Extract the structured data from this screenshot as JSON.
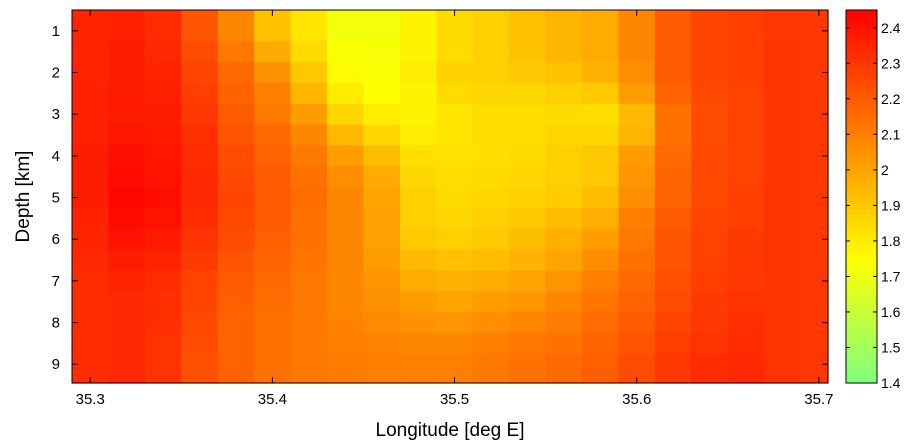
{
  "chart_data": {
    "type": "heatmap",
    "xlabel": "Longitude [deg E]",
    "ylabel": "Depth [km]",
    "xlim": [
      35.29,
      35.705
    ],
    "ylim": [
      9.45,
      0.5
    ],
    "y_direction": "down",
    "xticks": [
      35.3,
      35.4,
      35.5,
      35.6,
      35.7
    ],
    "xtick_labels": [
      "35.3",
      "35.4",
      "35.5",
      "35.6",
      "35.7"
    ],
    "yticks": [
      1,
      2,
      3,
      4,
      5,
      6,
      7,
      8,
      9
    ],
    "ytick_labels": [
      "1",
      "2",
      "3",
      "4",
      "5",
      "6",
      "7",
      "8",
      "9"
    ],
    "colorbar": {
      "range": [
        1.4,
        2.45
      ],
      "colormap": "jet",
      "ticks": [
        1.4,
        1.5,
        1.6,
        1.7,
        1.8,
        1.9,
        2.0,
        2.1,
        2.2,
        2.3,
        2.4
      ],
      "tick_labels": [
        "1.4",
        "1.5",
        "1.6",
        "1.7",
        "1.8",
        "1.9",
        "2",
        "2.1",
        "2.2",
        "2.3",
        "2.4"
      ]
    },
    "grid": false,
    "legend": "none",
    "x": [
      35.3,
      35.32,
      35.34,
      35.36,
      35.38,
      35.4,
      35.42,
      35.44,
      35.46,
      35.48,
      35.5,
      35.52,
      35.54,
      35.56,
      35.58,
      35.6,
      35.62,
      35.64,
      35.66,
      35.68,
      35.7
    ],
    "y": [
      0.5,
      1,
      1.5,
      2,
      2.5,
      3,
      3.5,
      4,
      4.5,
      5,
      5.5,
      6,
      6.5,
      7,
      7.5,
      8,
      8.5,
      9,
      9.5
    ],
    "z": [
      [
        2.35,
        2.36,
        2.33,
        2.22,
        2.08,
        1.92,
        1.82,
        1.72,
        1.72,
        1.78,
        1.85,
        1.88,
        1.92,
        1.95,
        1.98,
        2.08,
        2.2,
        2.26,
        2.28,
        2.3,
        2.3
      ],
      [
        2.35,
        2.36,
        2.33,
        2.22,
        2.08,
        1.92,
        1.82,
        1.72,
        1.72,
        1.78,
        1.85,
        1.88,
        1.92,
        1.95,
        1.98,
        2.08,
        2.2,
        2.26,
        2.28,
        2.3,
        2.3
      ],
      [
        2.35,
        2.37,
        2.34,
        2.24,
        2.12,
        1.98,
        1.85,
        1.74,
        1.73,
        1.78,
        1.85,
        1.88,
        1.92,
        1.95,
        1.98,
        2.08,
        2.2,
        2.26,
        2.28,
        2.31,
        2.3
      ],
      [
        2.35,
        2.37,
        2.35,
        2.26,
        2.16,
        2.05,
        1.9,
        1.76,
        1.74,
        1.8,
        1.87,
        1.88,
        1.9,
        1.92,
        1.96,
        2.06,
        2.2,
        2.26,
        2.28,
        2.31,
        2.3
      ],
      [
        2.36,
        2.38,
        2.36,
        2.28,
        2.18,
        2.1,
        1.95,
        1.8,
        1.75,
        1.78,
        1.85,
        1.86,
        1.86,
        1.88,
        1.9,
        2.02,
        2.18,
        2.25,
        2.27,
        2.31,
        2.3
      ],
      [
        2.36,
        2.38,
        2.37,
        2.3,
        2.2,
        2.12,
        2.02,
        1.86,
        1.8,
        1.78,
        1.82,
        1.84,
        1.84,
        1.85,
        1.84,
        1.94,
        2.14,
        2.24,
        2.27,
        2.31,
        2.3
      ],
      [
        2.36,
        2.39,
        2.38,
        2.32,
        2.22,
        2.16,
        2.08,
        1.94,
        1.86,
        1.8,
        1.82,
        1.84,
        1.84,
        1.86,
        1.86,
        1.95,
        2.14,
        2.24,
        2.27,
        2.31,
        2.3
      ],
      [
        2.37,
        2.41,
        2.39,
        2.33,
        2.24,
        2.18,
        2.12,
        2.02,
        1.93,
        1.84,
        1.83,
        1.84,
        1.85,
        1.88,
        1.9,
        2.02,
        2.16,
        2.25,
        2.27,
        2.31,
        2.3
      ],
      [
        2.37,
        2.42,
        2.4,
        2.34,
        2.25,
        2.2,
        2.14,
        2.06,
        1.98,
        1.86,
        1.84,
        1.85,
        1.86,
        1.88,
        1.9,
        2.04,
        2.17,
        2.25,
        2.27,
        2.31,
        2.3
      ],
      [
        2.37,
        2.43,
        2.41,
        2.34,
        2.26,
        2.2,
        2.15,
        2.08,
        2.0,
        1.88,
        1.85,
        1.86,
        1.87,
        1.89,
        1.93,
        2.06,
        2.18,
        2.25,
        2.28,
        2.31,
        2.3
      ],
      [
        2.36,
        2.42,
        2.4,
        2.33,
        2.25,
        2.2,
        2.14,
        2.08,
        2.01,
        1.88,
        1.86,
        1.88,
        1.9,
        1.93,
        1.97,
        2.1,
        2.2,
        2.26,
        2.28,
        2.31,
        2.3
      ],
      [
        2.35,
        2.4,
        2.38,
        2.31,
        2.24,
        2.19,
        2.14,
        2.08,
        2.01,
        1.9,
        1.88,
        1.9,
        1.93,
        1.97,
        2.02,
        2.12,
        2.22,
        2.27,
        2.29,
        2.31,
        2.3
      ],
      [
        2.34,
        2.37,
        2.35,
        2.29,
        2.22,
        2.18,
        2.13,
        2.08,
        2.02,
        1.94,
        1.92,
        1.93,
        1.96,
        2.0,
        2.06,
        2.14,
        2.22,
        2.27,
        2.29,
        2.31,
        2.3
      ],
      [
        2.33,
        2.35,
        2.33,
        2.27,
        2.2,
        2.16,
        2.12,
        2.08,
        2.04,
        1.98,
        1.96,
        1.98,
        2.0,
        2.04,
        2.1,
        2.16,
        2.23,
        2.28,
        2.3,
        2.31,
        2.3
      ],
      [
        2.33,
        2.34,
        2.32,
        2.26,
        2.19,
        2.15,
        2.12,
        2.08,
        2.05,
        2.02,
        2.0,
        2.02,
        2.04,
        2.08,
        2.13,
        2.18,
        2.24,
        2.29,
        2.31,
        2.31,
        2.3
      ],
      [
        2.33,
        2.34,
        2.32,
        2.25,
        2.18,
        2.14,
        2.12,
        2.09,
        2.07,
        2.05,
        2.04,
        2.06,
        2.08,
        2.11,
        2.15,
        2.2,
        2.26,
        2.3,
        2.32,
        2.31,
        2.3
      ],
      [
        2.33,
        2.34,
        2.31,
        2.24,
        2.18,
        2.14,
        2.12,
        2.1,
        2.09,
        2.08,
        2.08,
        2.1,
        2.12,
        2.14,
        2.17,
        2.22,
        2.28,
        2.31,
        2.33,
        2.31,
        2.3
      ],
      [
        2.33,
        2.34,
        2.31,
        2.23,
        2.18,
        2.14,
        2.12,
        2.11,
        2.1,
        2.1,
        2.1,
        2.12,
        2.14,
        2.16,
        2.19,
        2.24,
        2.3,
        2.33,
        2.34,
        2.31,
        2.3
      ],
      [
        2.33,
        2.34,
        2.31,
        2.23,
        2.18,
        2.14,
        2.12,
        2.11,
        2.1,
        2.1,
        2.1,
        2.12,
        2.14,
        2.16,
        2.19,
        2.24,
        2.3,
        2.33,
        2.34,
        2.31,
        2.3
      ]
    ]
  }
}
